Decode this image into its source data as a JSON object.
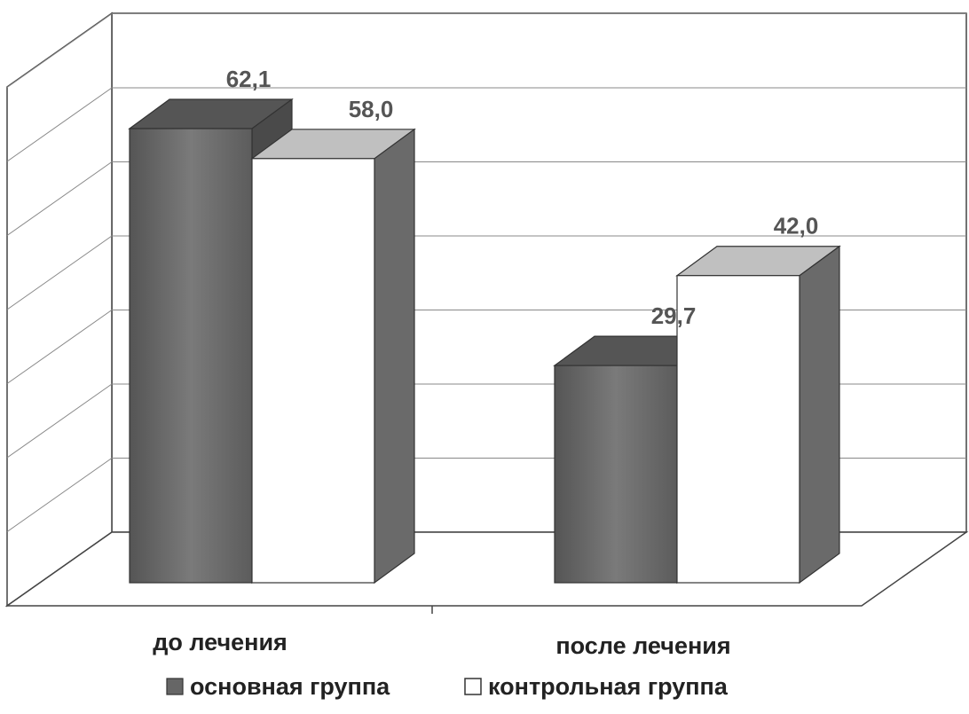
{
  "chart_data": {
    "type": "bar",
    "categories": [
      "до лечения",
      "после лечения"
    ],
    "series": [
      {
        "name": "основная группа",
        "values": [
          62.1,
          29.7
        ],
        "labels": [
          "62,1",
          "29,7"
        ],
        "color": "#6e6e6e"
      },
      {
        "name": "контрольная группа",
        "values": [
          58.0,
          42.0
        ],
        "labels": [
          "58,0",
          "42,0"
        ],
        "color": "#ffffff"
      }
    ],
    "ylim": [
      0,
      70
    ],
    "grid": true,
    "legend_position": "bottom",
    "style": "3d"
  }
}
